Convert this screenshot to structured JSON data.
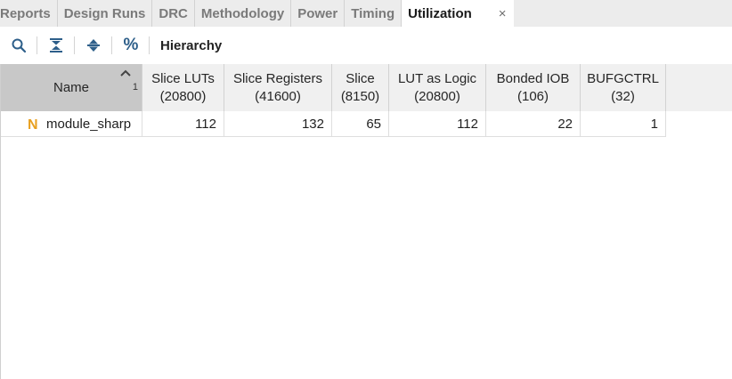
{
  "tabs": [
    {
      "label": "Reports"
    },
    {
      "label": "Design Runs"
    },
    {
      "label": "DRC"
    },
    {
      "label": "Methodology"
    },
    {
      "label": "Power"
    },
    {
      "label": "Timing"
    },
    {
      "label": "Utilization",
      "active": true
    }
  ],
  "close_glyph": "×",
  "toolbar": {
    "icons": [
      "search-icon",
      "collapse-all-icon",
      "expand-all-icon",
      "percent-icon"
    ],
    "percent_glyph": "%",
    "hierarchy_label": "Hierarchy"
  },
  "table": {
    "columns": [
      {
        "line1": "Name",
        "line2": ""
      },
      {
        "line1": "Slice LUTs",
        "line2": "(20800)"
      },
      {
        "line1": "Slice Registers",
        "line2": "(41600)"
      },
      {
        "line1": "Slice",
        "line2": "(8150)"
      },
      {
        "line1": "LUT as Logic",
        "line2": "(20800)"
      },
      {
        "line1": "Bonded IOB",
        "line2": "(106)"
      },
      {
        "line1": "BUFGCTRL",
        "line2": "(32)"
      }
    ],
    "sort_index": "1",
    "rows": [
      {
        "icon_letter": "N",
        "name": "module_sharp",
        "values": [
          "112",
          "132",
          "65",
          "112",
          "22",
          "1"
        ]
      }
    ]
  },
  "colors": {
    "accent_icon": "#e8a020",
    "toolbar_icon": "#2e5f8a"
  }
}
